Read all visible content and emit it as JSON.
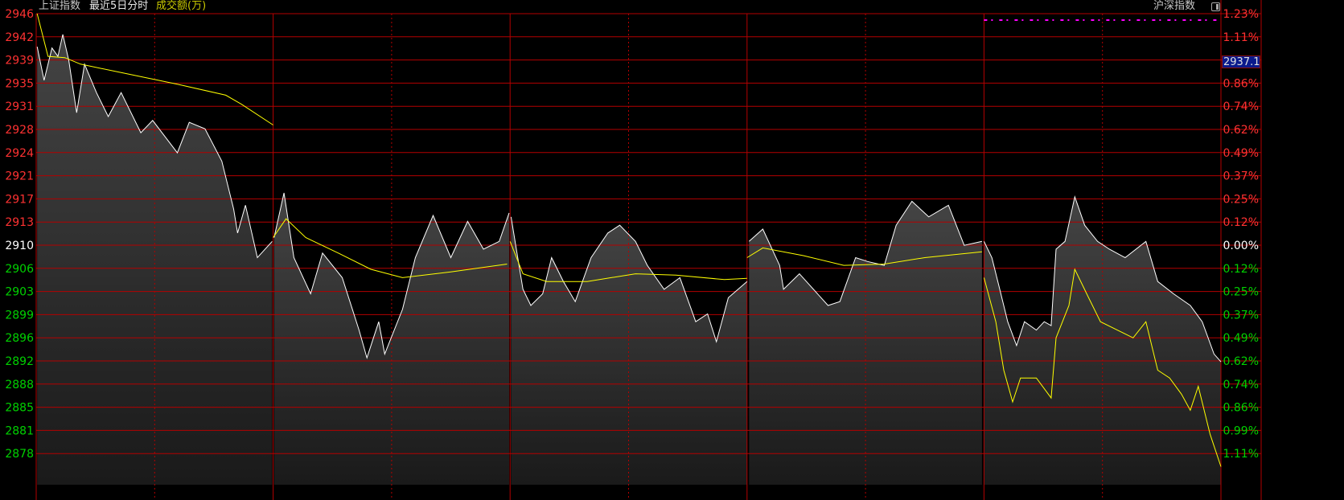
{
  "header": {
    "index_name": "上证指数",
    "period": "最近5日分时",
    "volume_label": "成交额(万)",
    "compare_label": "沪深指数"
  },
  "current_value": "2937.1",
  "colors": {
    "up": "#ff3232",
    "down": "#00d200",
    "grid": "#b40000",
    "price_line": "#ffffff",
    "avg_line": "#ffff00",
    "marker": "#ff00ff",
    "current_bg": "#0a1a8c"
  },
  "chart_data": {
    "type": "line",
    "title": "",
    "xlabel": "",
    "ylabel": "",
    "days": 5,
    "minutes_per_day": 240,
    "base_price": 2910,
    "ylim": [
      2873.0,
      2945.8
    ],
    "grid": true,
    "left_ticks": [
      "2946",
      "2942",
      "2939",
      "2935",
      "2931",
      "2928",
      "2924",
      "2921",
      "2917",
      "2913",
      "2910",
      "2906",
      "2903",
      "2899",
      "2896",
      "2892",
      "2888",
      "2885",
      "2881",
      "2878"
    ],
    "right_ticks": [
      "1.23%",
      "1.11%",
      "",
      "0.86%",
      "0.74%",
      "0.62%",
      "0.49%",
      "0.37%",
      "0.25%",
      "0.12%",
      "0.00%",
      "0.12%",
      "0.25%",
      "0.37%",
      "0.49%",
      "0.62%",
      "0.74%",
      "0.86%",
      "0.99%",
      "1.11%"
    ],
    "series": [
      {
        "role": "price",
        "days": [
          [
            [
              1,
              2940.7
            ],
            [
              8,
              2935.5
            ],
            [
              16,
              2940.5
            ],
            [
              22,
              2939.2
            ],
            [
              27,
              2942.6
            ],
            [
              33,
              2938.6
            ],
            [
              41,
              2930.5
            ],
            [
              49,
              2938
            ],
            [
              61,
              2933.6
            ],
            [
              73,
              2929.9
            ],
            [
              86,
              2933.6
            ],
            [
              106,
              2927.4
            ],
            [
              118,
              2929.3
            ],
            [
              143,
              2924.3
            ],
            [
              155,
              2929
            ],
            [
              171,
              2928
            ],
            [
              188,
              2923
            ],
            [
              200,
              2915.6
            ],
            [
              204,
              2911.9
            ],
            [
              212,
              2916.2
            ],
            [
              224,
              2908.1
            ],
            [
              239,
              2910.6
            ]
          ],
          [
            [
              1,
              2911.2
            ],
            [
              11,
              2918.1
            ],
            [
              21,
              2908.1
            ],
            [
              38,
              2902.5
            ],
            [
              50,
              2908.8
            ],
            [
              70,
              2905
            ],
            [
              87,
              2896.9
            ],
            [
              95,
              2892.6
            ],
            [
              107,
              2898.2
            ],
            [
              113,
              2893.2
            ],
            [
              131,
              2900.1
            ],
            [
              144,
              2908.1
            ],
            [
              162,
              2914.6
            ],
            [
              180,
              2908.1
            ],
            [
              197,
              2913.7
            ],
            [
              213,
              2909.4
            ],
            [
              229,
              2910.6
            ],
            [
              239,
              2915
            ]
          ],
          [
            [
              1,
              2914.4
            ],
            [
              13,
              2903.2
            ],
            [
              21,
              2900.7
            ],
            [
              33,
              2902.5
            ],
            [
              42,
              2908.1
            ],
            [
              54,
              2904.4
            ],
            [
              66,
              2901.3
            ],
            [
              82,
              2908.1
            ],
            [
              99,
              2911.9
            ],
            [
              111,
              2913.1
            ],
            [
              127,
              2910.6
            ],
            [
              139,
              2906.9
            ],
            [
              156,
              2903.2
            ],
            [
              172,
              2905
            ],
            [
              188,
              2898.2
            ],
            [
              200,
              2899.4
            ],
            [
              209,
              2895.1
            ],
            [
              221,
              2901.9
            ],
            [
              240,
              2904.4
            ]
          ],
          [
            [
              2,
              2910.6
            ],
            [
              16,
              2912.5
            ],
            [
              33,
              2906.9
            ],
            [
              37,
              2903.2
            ],
            [
              53,
              2905.6
            ],
            [
              82,
              2900.7
            ],
            [
              94,
              2901.3
            ],
            [
              110,
              2908.1
            ],
            [
              122,
              2907.5
            ],
            [
              139,
              2906.9
            ],
            [
              151,
              2913.1
            ],
            [
              167,
              2916.8
            ],
            [
              184,
              2914.4
            ],
            [
              204,
              2916.2
            ],
            [
              220,
              2910
            ],
            [
              238,
              2910.6
            ]
          ],
          [
            [
              0,
              2910.6
            ],
            [
              8,
              2908.1
            ],
            [
              16,
              2903.2
            ],
            [
              24,
              2898.2
            ],
            [
              33,
              2894.5
            ],
            [
              41,
              2898.2
            ],
            [
              53,
              2896.9
            ],
            [
              61,
              2898.2
            ],
            [
              68,
              2897.6
            ],
            [
              73,
              2909.4
            ],
            [
              82,
              2910.6
            ],
            [
              92,
              2917.5
            ],
            [
              102,
              2913.1
            ],
            [
              115,
              2910.6
            ],
            [
              127,
              2909.4
            ],
            [
              143,
              2908.1
            ],
            [
              164,
              2910.6
            ],
            [
              176,
              2904.4
            ],
            [
              192,
              2902.5
            ],
            [
              209,
              2900.7
            ],
            [
              221,
              2898.2
            ],
            [
              233,
              2893.2
            ],
            [
              240,
              2892
            ]
          ]
        ]
      },
      {
        "role": "average",
        "days": [
          [
            [
              1,
              2945.8
            ],
            [
              12,
              2939.2
            ],
            [
              29,
              2939
            ],
            [
              45,
              2938
            ],
            [
              86,
              2936.7
            ],
            [
              143,
              2934.9
            ],
            [
              192,
              2933.2
            ],
            [
              208,
              2931.8
            ],
            [
              240,
              2928.6
            ]
          ],
          [
            [
              0,
              2911.2
            ],
            [
              13,
              2914.1
            ],
            [
              33,
              2911.2
            ],
            [
              66,
              2908.8
            ],
            [
              99,
              2906.3
            ],
            [
              131,
              2905
            ],
            [
              180,
              2905.9
            ],
            [
              237,
              2907.1
            ]
          ],
          [
            [
              0,
              2910.6
            ],
            [
              13,
              2905.6
            ],
            [
              37,
              2904.4
            ],
            [
              78,
              2904.4
            ],
            [
              127,
              2905.6
            ],
            [
              168,
              2905.4
            ],
            [
              217,
              2904.7
            ],
            [
              240,
              2904.9
            ]
          ],
          [
            [
              0,
              2908.1
            ],
            [
              16,
              2909.6
            ],
            [
              57,
              2908.4
            ],
            [
              98,
              2906.9
            ],
            [
              139,
              2907.1
            ],
            [
              180,
              2908.1
            ],
            [
              238,
              2909
            ]
          ],
          [
            [
              0,
              2905
            ],
            [
              12,
              2898.2
            ],
            [
              20,
              2890.7
            ],
            [
              29,
              2885.8
            ],
            [
              37,
              2889.5
            ],
            [
              53,
              2889.5
            ],
            [
              68,
              2886.4
            ],
            [
              73,
              2895.7
            ],
            [
              86,
              2900.7
            ],
            [
              92,
              2906.3
            ],
            [
              106,
              2901.9
            ],
            [
              118,
              2898.2
            ],
            [
              135,
              2896.9
            ],
            [
              151,
              2895.7
            ],
            [
              164,
              2898.2
            ],
            [
              176,
              2890.7
            ],
            [
              188,
              2889.5
            ],
            [
              200,
              2887
            ],
            [
              209,
              2884.5
            ],
            [
              217,
              2888.2
            ],
            [
              229,
              2880.8
            ],
            [
              240,
              2875.8
            ]
          ]
        ]
      }
    ]
  }
}
